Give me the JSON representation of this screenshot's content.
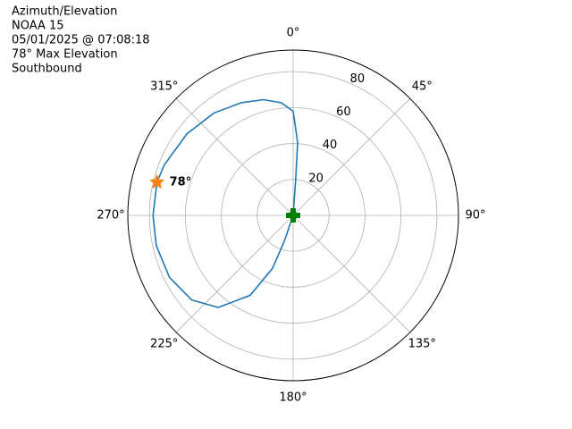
{
  "chart_data": {
    "type": "polar",
    "title_lines": [
      "Azimuth/Elevation",
      "NOAA 15",
      "05/01/2025 @ 07:08:18",
      "78° Max Elevation",
      "Southbound"
    ],
    "xlim": [
      0,
      360
    ],
    "xticks": [
      {
        "value": 0,
        "label": "0°"
      },
      {
        "value": 45,
        "label": "45°"
      },
      {
        "value": 90,
        "label": "90°"
      },
      {
        "value": 135,
        "label": "135°"
      },
      {
        "value": 180,
        "label": "180°"
      },
      {
        "value": 225,
        "label": "225°"
      },
      {
        "value": 270,
        "label": "270°"
      },
      {
        "value": 315,
        "label": "315°"
      }
    ],
    "ylim": [
      0,
      92
    ],
    "yticks": [
      20,
      40,
      60,
      80
    ],
    "grid": true,
    "series": [
      {
        "color": "#1f77b4",
        "marker": "line",
        "x": [
          4,
          4,
          3.5,
          0,
          354,
          345.6,
          335.3,
          322.3,
          307.6,
          291.4,
          283.7,
          270,
          257.5,
          243.4,
          230.2,
          219.1,
          208.3,
          201.3,
          199,
          199
        ],
        "values": [
          0,
          20.5,
          40.6,
          58,
          63,
          66.5,
          69,
          72,
          74.5,
          77,
          78,
          78,
          78,
          77,
          73.5,
          66,
          50.5,
          31.7,
          15.3,
          0
        ]
      },
      {
        "color": "#ff7f0e",
        "marker": "star",
        "x": [
          283.7
        ],
        "values": [
          78
        ],
        "value_labels": [
          "78°"
        ]
      },
      {
        "color": "#008000",
        "marker": "plus",
        "x": [
          0
        ],
        "values": [
          0
        ]
      }
    ]
  }
}
